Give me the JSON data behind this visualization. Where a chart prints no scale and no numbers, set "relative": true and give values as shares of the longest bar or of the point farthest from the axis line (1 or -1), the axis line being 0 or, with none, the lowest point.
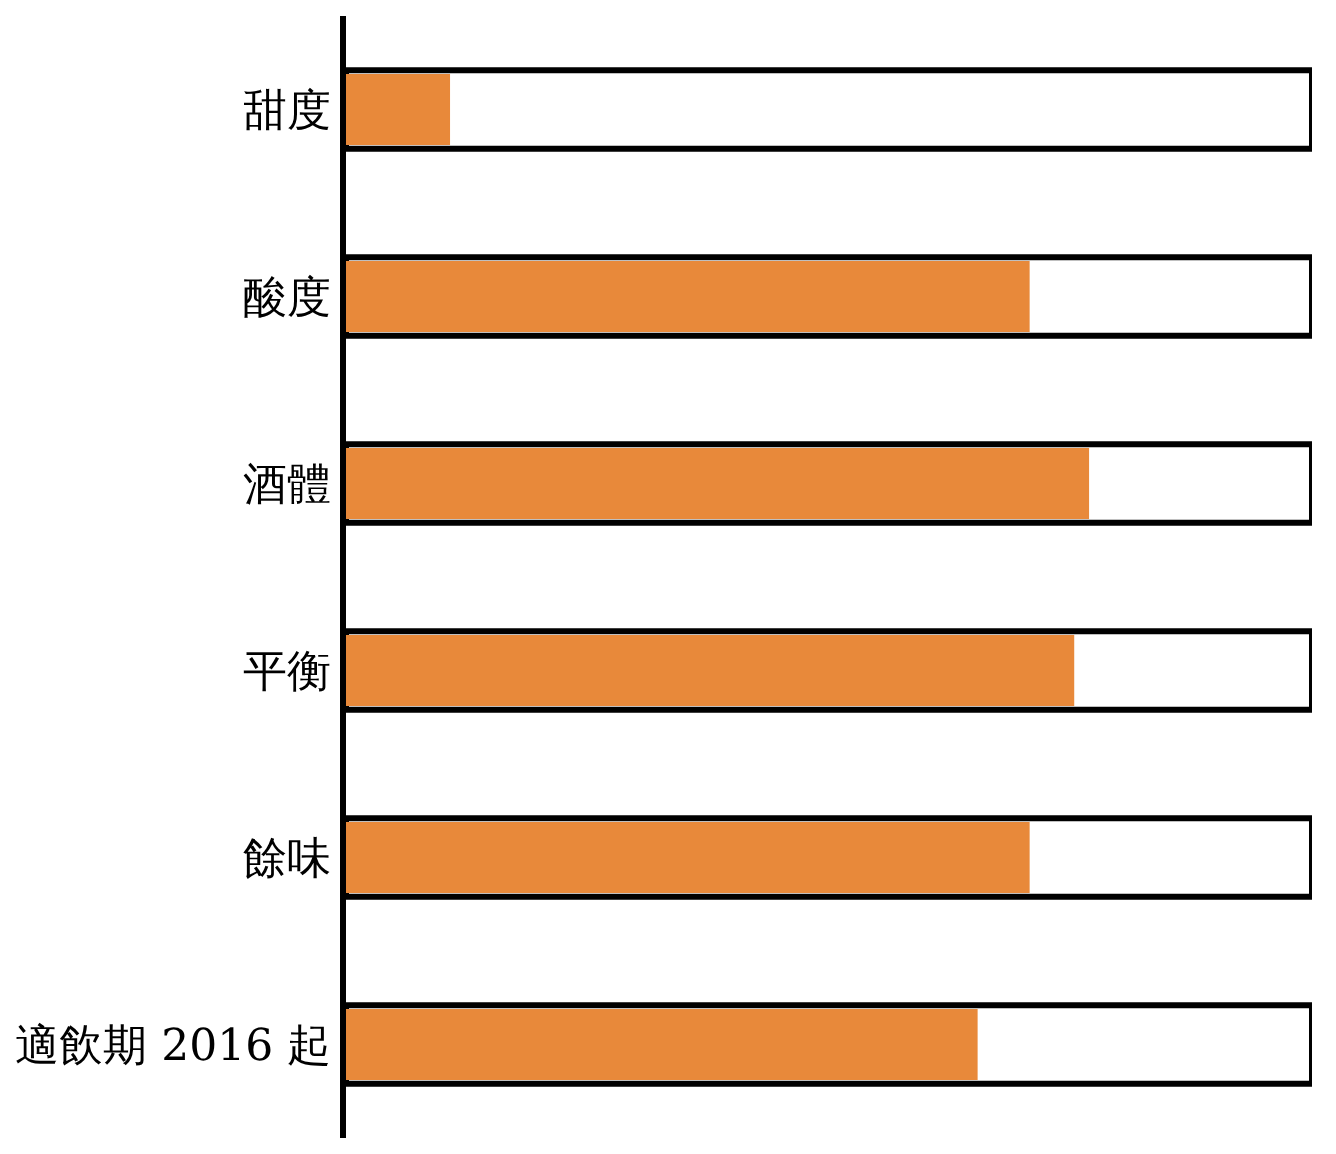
{
  "chart_data": {
    "type": "bar",
    "orientation": "horizontal",
    "relative": true,
    "categories": [
      "甜度",
      "酸度",
      "酒體",
      "平衡",
      "餘味",
      "適飲期 2016 起"
    ],
    "values": [
      0.14,
      0.92,
      1,
      0.98,
      0.92,
      0.85
    ],
    "color": "#e8893a"
  }
}
